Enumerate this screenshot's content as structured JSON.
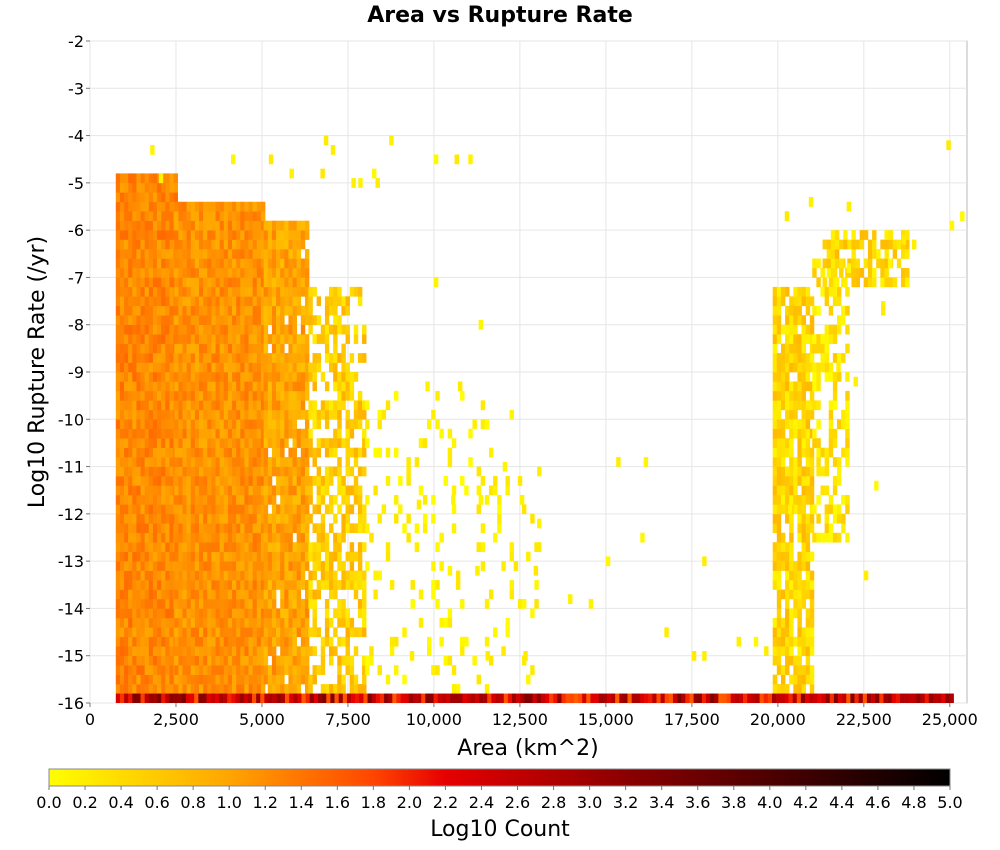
{
  "chart_data": {
    "type": "heatmap",
    "title": "Area vs Rupture Rate",
    "xlabel": "Area (km^2)",
    "ylabel": "Log10 Rupture Rate (/yr)",
    "xlim": [
      0,
      25500
    ],
    "ylim": [
      -16,
      -2
    ],
    "x_ticks": [
      "0",
      "2,500",
      "5,000",
      "7,500",
      "10,000",
      "12,500",
      "15,000",
      "17,500",
      "20,000",
      "22,500",
      "25,000"
    ],
    "x_tick_values": [
      0,
      2500,
      5000,
      7500,
      10000,
      12500,
      15000,
      17500,
      20000,
      22500,
      25000
    ],
    "y_ticks": [
      "-2",
      "-3",
      "-4",
      "-5",
      "-6",
      "-7",
      "-8",
      "-9",
      "-10",
      "-11",
      "-12",
      "-13",
      "-14",
      "-15",
      "-16"
    ],
    "y_tick_values": [
      -2,
      -3,
      -4,
      -5,
      -6,
      -7,
      -8,
      -9,
      -10,
      -11,
      -12,
      -13,
      -14,
      -15,
      -16
    ],
    "grid": true,
    "bin_size": {
      "x": 120,
      "y": 0.2
    },
    "colorbar": {
      "label": "Log10 Count",
      "range": [
        0.0,
        5.0
      ],
      "ticks": [
        "0.0",
        "0.2",
        "0.4",
        "0.6",
        "0.8",
        "1.0",
        "1.2",
        "1.4",
        "1.6",
        "1.8",
        "2.0",
        "2.2",
        "2.4",
        "2.6",
        "2.8",
        "3.0",
        "3.2",
        "3.4",
        "3.6",
        "3.8",
        "4.0",
        "4.2",
        "4.4",
        "4.6",
        "4.8",
        "5.0"
      ],
      "colors": [
        "#ffff00",
        "#ffa500",
        "#ff4500",
        "#e60000",
        "#8b0000",
        "#000000"
      ],
      "stops": [
        0.0,
        1.0,
        1.8,
        2.2,
        3.2,
        5.0
      ]
    },
    "regions": [
      {
        "x": [
          750,
          2450
        ],
        "y": [
          -15.8,
          -4.8
        ],
        "log_count": [
          1.0,
          1.5
        ],
        "density": 1.0
      },
      {
        "x": [
          2450,
          5050
        ],
        "y": [
          -15.8,
          -5.4
        ],
        "log_count": [
          0.9,
          1.4
        ],
        "density": 1.0
      },
      {
        "x": [
          5050,
          6350
        ],
        "y": [
          -15.8,
          -5.8
        ],
        "log_count": [
          0.7,
          1.3
        ],
        "density": 0.95
      },
      {
        "x": [
          6350,
          8000
        ],
        "y": [
          -15.8,
          -7.2
        ],
        "log_count": [
          0.2,
          0.9
        ],
        "density": 0.6
      },
      {
        "x": [
          8000,
          13000
        ],
        "y": [
          -15.8,
          -9.5
        ],
        "log_count": [
          0.0,
          0.3
        ],
        "density": 0.12
      },
      {
        "x": [
          19850,
          21000
        ],
        "y": [
          -15.8,
          -7.2
        ],
        "log_count": [
          0.1,
          0.8
        ],
        "density": 0.85
      },
      {
        "x": [
          21000,
          22000
        ],
        "y": [
          -12.6,
          -6.6
        ],
        "log_count": [
          0.0,
          0.6
        ],
        "density": 0.45
      },
      {
        "x": [
          21300,
          23800
        ],
        "y": [
          -7.2,
          -6.0
        ],
        "log_count": [
          0.1,
          0.8
        ],
        "density": 0.6
      },
      {
        "x": [
          750,
          25000
        ],
        "y": [
          -16.0,
          -15.8
        ],
        "log_count": [
          1.6,
          3.4
        ],
        "density": 1.0
      }
    ],
    "scattered_bins": [
      [
        1750,
        -4.4
      ],
      [
        2000,
        -5.0
      ],
      [
        4100,
        -4.6
      ],
      [
        5200,
        -4.6
      ],
      [
        6800,
        -4.2
      ],
      [
        7000,
        -4.4
      ],
      [
        8700,
        -4.2
      ],
      [
        10000,
        -4.6
      ],
      [
        10600,
        -4.6
      ],
      [
        11000,
        -4.6
      ],
      [
        10000,
        -7.2
      ],
      [
        11300,
        -8.1
      ],
      [
        9750,
        -9.4
      ],
      [
        10700,
        -9.4
      ],
      [
        8000,
        -10.6
      ],
      [
        8600,
        -10.8
      ],
      [
        11000,
        -10.4
      ],
      [
        11600,
        -10.8
      ],
      [
        12000,
        -11.1
      ],
      [
        13000,
        -11.2
      ],
      [
        15300,
        -11.0
      ],
      [
        16100,
        -11.0
      ],
      [
        9500,
        -11.9
      ],
      [
        10500,
        -11.8
      ],
      [
        11300,
        -11.8
      ],
      [
        12500,
        -11.8
      ],
      [
        13000,
        -12.3
      ],
      [
        16000,
        -12.6
      ],
      [
        12200,
        -12.8
      ],
      [
        13000,
        -12.8
      ],
      [
        15000,
        -13.1
      ],
      [
        17800,
        -13.1
      ],
      [
        10400,
        -13.3
      ],
      [
        11200,
        -13.3
      ],
      [
        12900,
        -13.3
      ],
      [
        16700,
        -14.6
      ],
      [
        17500,
        -15.1
      ],
      [
        17800,
        -15.1
      ],
      [
        18800,
        -14.8
      ],
      [
        19300,
        -14.8
      ],
      [
        19600,
        -15.0
      ],
      [
        22500,
        -13.4
      ],
      [
        22800,
        -11.5
      ],
      [
        22200,
        -9.3
      ],
      [
        25000,
        -6.0
      ],
      [
        25300,
        -5.8
      ],
      [
        24900,
        -4.3
      ],
      [
        22000,
        -6.9
      ],
      [
        23000,
        -7.7
      ],
      [
        23200,
        -6.8
      ],
      [
        20200,
        -5.8
      ],
      [
        20900,
        -5.5
      ],
      [
        22000,
        -5.6
      ],
      [
        23600,
        -6.3
      ],
      [
        23900,
        -6.4
      ],
      [
        20300,
        -12.0
      ],
      [
        21700,
        -9.0
      ],
      [
        23000,
        -7.8
      ],
      [
        14500,
        -14.0
      ],
      [
        13900,
        -13.9
      ],
      [
        12600,
        -15.1
      ],
      [
        11500,
        -15.1
      ],
      [
        9300,
        -15.1
      ],
      [
        6700,
        -4.9
      ],
      [
        7600,
        -5.1
      ],
      [
        8300,
        -5.1
      ],
      [
        5800,
        -4.9
      ],
      [
        7800,
        -5.1
      ],
      [
        8200,
        -4.9
      ],
      [
        12800,
        -15.4
      ]
    ]
  }
}
